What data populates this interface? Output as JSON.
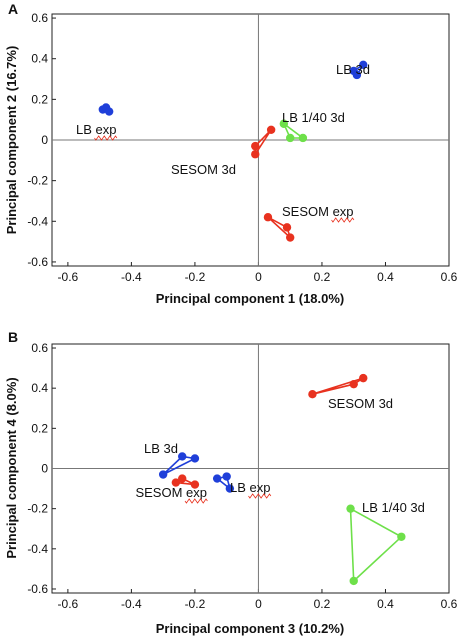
{
  "chart_data": [
    {
      "type": "scatter",
      "panel": "A",
      "xlabel": "Principal component 1 (18.0%)",
      "ylabel": "Principal component 2 (16.7%)",
      "xlim": [
        -0.65,
        0.6
      ],
      "ylim": [
        -0.62,
        0.62
      ],
      "xticks": [
        -0.6,
        -0.4,
        -0.2,
        0,
        0.2,
        0.4,
        0.6
      ],
      "yticks": [
        -0.6,
        -0.4,
        -0.2,
        0,
        0.2,
        0.4,
        0.6
      ],
      "xtick_labels": [
        "-0.6",
        "-0.4",
        "-0.2",
        "0",
        "0.2",
        "0.4",
        "0.6"
      ],
      "ytick_labels": [
        "-0.6",
        "-0.4",
        "-0.2",
        "0",
        "0.2",
        "0.4",
        "0.6"
      ],
      "grid": false,
      "groups": [
        {
          "label": "LB 3d",
          "color": "#1f3fd9",
          "points": [
            [
              0.3,
              0.34
            ],
            [
              0.31,
              0.32
            ],
            [
              0.33,
              0.37
            ]
          ]
        },
        {
          "label": "LB exp",
          "color": "#1f3fd9",
          "points": [
            [
              -0.49,
              0.15
            ],
            [
              -0.48,
              0.16
            ],
            [
              -0.47,
              0.14
            ]
          ]
        },
        {
          "label": "LB 1/40 3d",
          "color": "#6ee04a",
          "points": [
            [
              0.08,
              0.08
            ],
            [
              0.1,
              0.01
            ],
            [
              0.14,
              0.01
            ]
          ]
        },
        {
          "label": "SESOM 3d",
          "color": "#e8321f",
          "points": [
            [
              -0.01,
              -0.07
            ],
            [
              -0.01,
              -0.03
            ],
            [
              0.04,
              0.05
            ]
          ]
        },
        {
          "label": "SESOM exp",
          "color": "#e8321f",
          "points": [
            [
              0.03,
              -0.38
            ],
            [
              0.09,
              -0.43
            ],
            [
              0.1,
              -0.48
            ]
          ]
        }
      ]
    },
    {
      "type": "scatter",
      "panel": "B",
      "xlabel": "Principal component 3 (10.2%)",
      "ylabel": "Principal component 4 (8.0%)",
      "xlim": [
        -0.65,
        0.6
      ],
      "ylim": [
        -0.62,
        0.62
      ],
      "xticks": [
        -0.6,
        -0.4,
        -0.2,
        0,
        0.2,
        0.4,
        0.6
      ],
      "yticks": [
        -0.6,
        -0.4,
        -0.2,
        0,
        0.2,
        0.4,
        0.6
      ],
      "xtick_labels": [
        "-0.6",
        "-0.4",
        "-0.2",
        "0",
        "0.2",
        "0.4",
        "0.6"
      ],
      "ytick_labels": [
        "-0.6",
        "-0.4",
        "-0.2",
        "0",
        "0.2",
        "0.4",
        "0.6"
      ],
      "grid": false,
      "groups": [
        {
          "label": "SESOM 3d",
          "color": "#e8321f",
          "points": [
            [
              0.17,
              0.37
            ],
            [
              0.3,
              0.42
            ],
            [
              0.33,
              0.45
            ]
          ]
        },
        {
          "label": "LB 3d",
          "color": "#1f3fd9",
          "points": [
            [
              -0.3,
              -0.03
            ],
            [
              -0.24,
              0.06
            ],
            [
              -0.2,
              0.05
            ]
          ]
        },
        {
          "label": "SESOM exp",
          "color": "#e8321f",
          "points": [
            [
              -0.26,
              -0.07
            ],
            [
              -0.24,
              -0.05
            ],
            [
              -0.2,
              -0.08
            ]
          ]
        },
        {
          "label": "LB exp",
          "color": "#1f3fd9",
          "points": [
            [
              -0.13,
              -0.05
            ],
            [
              -0.1,
              -0.04
            ],
            [
              -0.09,
              -0.1
            ]
          ]
        },
        {
          "label": "LB 1/40 3d",
          "color": "#6ee04a",
          "points": [
            [
              0.29,
              -0.2
            ],
            [
              0.3,
              -0.56
            ],
            [
              0.45,
              -0.34
            ]
          ]
        }
      ]
    }
  ],
  "annotations": [
    {
      "panel": "A",
      "text": "LB 3d",
      "group": "LB 3d"
    },
    {
      "panel": "A",
      "text": "LB exp",
      "group": "LB exp"
    },
    {
      "panel": "A",
      "text": "LB 1/40 3d",
      "group": "LB 1/40 3d"
    },
    {
      "panel": "A",
      "text": "SESOM 3d",
      "group": "SESOM 3d"
    },
    {
      "panel": "A",
      "text": "SESOM exp",
      "group": "SESOM exp"
    },
    {
      "panel": "B",
      "text": "SESOM 3d",
      "group": "SESOM 3d"
    },
    {
      "panel": "B",
      "text": "LB 3d",
      "group": "LB 3d"
    },
    {
      "panel": "B",
      "text": "SESOM exp",
      "group": "SESOM exp"
    },
    {
      "panel": "B",
      "text": "LB exp",
      "group": "LB exp"
    },
    {
      "panel": "B",
      "text": "LB 1/40 3d",
      "group": "LB 1/40 3d"
    }
  ]
}
